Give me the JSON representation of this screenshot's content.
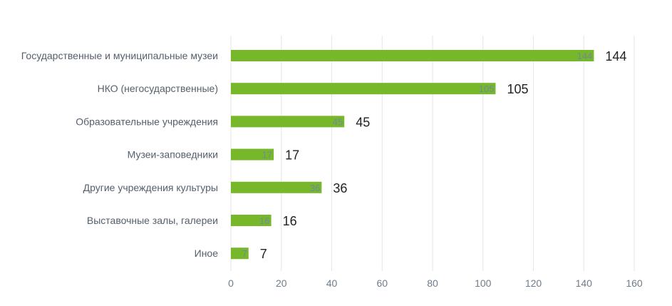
{
  "chart_data": {
    "type": "bar",
    "orientation": "horizontal",
    "categories": [
      "Государственные и муниципальные музеи",
      "НКО  (негосударственные)",
      "Образовательные учреждения",
      "Музеи-заповедники",
      "Другие учреждения культуры",
      "Выставочные залы, галереи",
      "Иное"
    ],
    "values": [
      144,
      105,
      45,
      17,
      36,
      16,
      7
    ],
    "xlim": [
      0,
      160
    ],
    "xticks": [
      0,
      20,
      40,
      60,
      80,
      100,
      120,
      140,
      160
    ],
    "grid": true,
    "legend": "none",
    "bar_color": "#77b82a"
  }
}
